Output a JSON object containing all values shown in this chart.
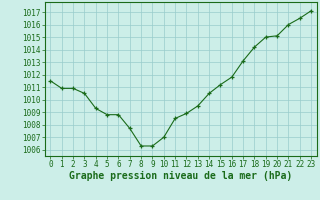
{
  "x": [
    0,
    1,
    2,
    3,
    4,
    5,
    6,
    7,
    8,
    9,
    10,
    11,
    12,
    13,
    14,
    15,
    16,
    17,
    18,
    19,
    20,
    21,
    22,
    23
  ],
  "y": [
    1011.5,
    1010.9,
    1010.9,
    1010.5,
    1009.3,
    1008.8,
    1008.8,
    1007.7,
    1006.3,
    1006.3,
    1007.0,
    1008.5,
    1008.9,
    1009.5,
    1010.5,
    1011.2,
    1011.8,
    1013.1,
    1014.2,
    1015.0,
    1015.1,
    1016.0,
    1016.5,
    1017.1
  ],
  "line_color": "#1a6b1a",
  "marker_color": "#1a6b1a",
  "bg_color": "#cceee8",
  "grid_color": "#99cccc",
  "xlabel": "Graphe pression niveau de la mer (hPa)",
  "ylim": [
    1005.5,
    1017.8
  ],
  "xlim": [
    -0.5,
    23.5
  ],
  "yticks": [
    1006,
    1007,
    1008,
    1009,
    1010,
    1011,
    1012,
    1013,
    1014,
    1015,
    1016,
    1017
  ],
  "xticks": [
    0,
    1,
    2,
    3,
    4,
    5,
    6,
    7,
    8,
    9,
    10,
    11,
    12,
    13,
    14,
    15,
    16,
    17,
    18,
    19,
    20,
    21,
    22,
    23
  ],
  "tick_color": "#1a6b1a",
  "label_fontsize": 5.5,
  "xlabel_fontsize": 7.0
}
